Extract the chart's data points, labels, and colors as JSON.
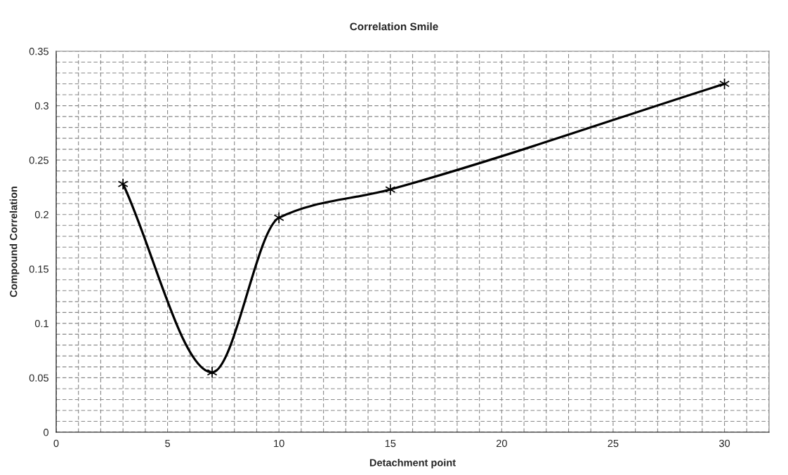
{
  "chart_data": {
    "type": "line",
    "title": "Correlation Smile",
    "xlabel": "Detachment point",
    "ylabel": "Compound Correlation",
    "x": [
      3,
      7,
      10,
      15,
      30
    ],
    "series": [
      {
        "color": "#000000",
        "values": [
          0.228,
          0.055,
          0.197,
          0.223,
          0.32
        ]
      }
    ],
    "xlim": [
      0,
      32
    ],
    "xticks": [
      0,
      5,
      10,
      15,
      20,
      25,
      30
    ],
    "ylim": [
      0,
      0.35
    ],
    "yticks": [
      0,
      0.05,
      0.1,
      0.15,
      0.2,
      0.25,
      0.3,
      0.35
    ],
    "grid": true,
    "legend": false,
    "marker": "cross",
    "line_style": "solid"
  }
}
